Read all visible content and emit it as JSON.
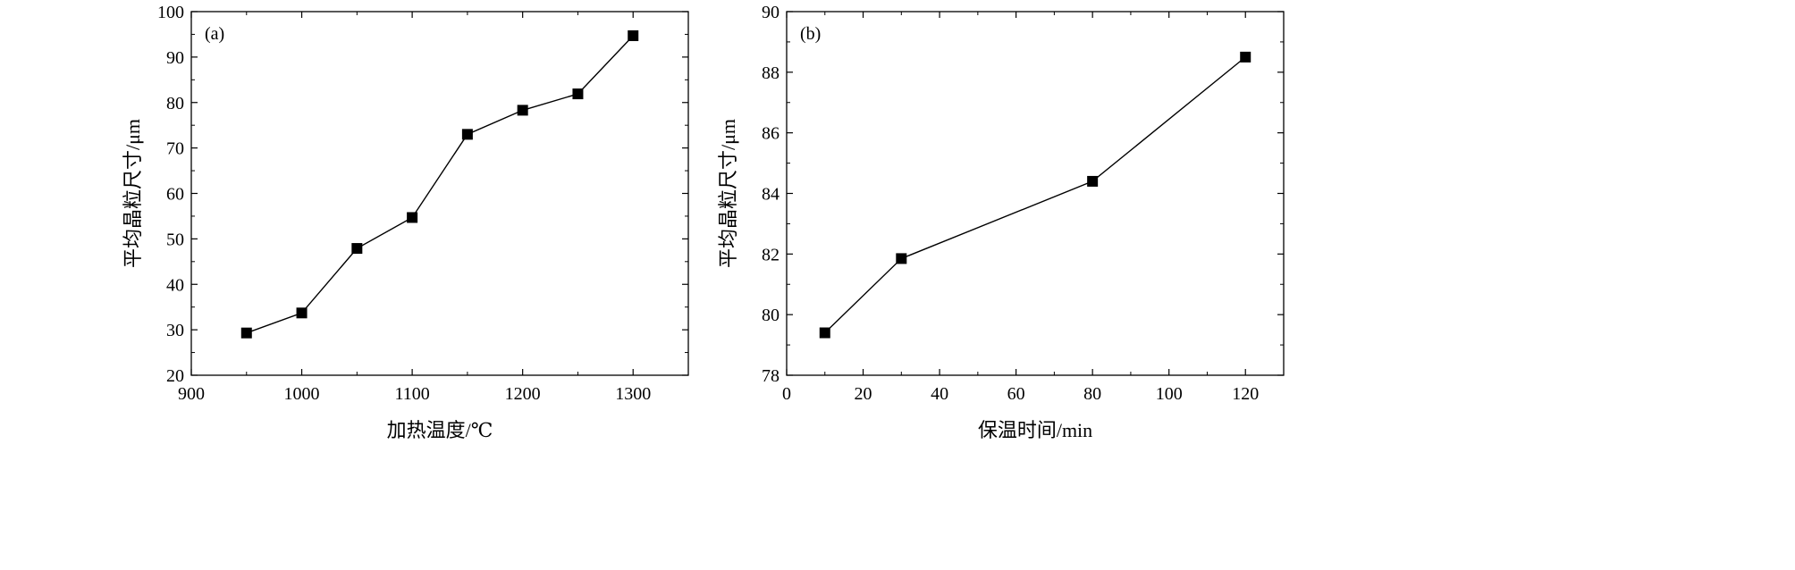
{
  "chart_data": [
    {
      "type": "line",
      "panel_label": "(a)",
      "xlabel": "加热温度/℃",
      "ylabel": "平均晶粒尺寸/μm",
      "xlim": [
        900,
        1350
      ],
      "ylim": [
        20,
        100
      ],
      "xticks": [
        900,
        1000,
        1100,
        1200,
        1300
      ],
      "yticks": [
        20,
        30,
        40,
        50,
        60,
        70,
        80,
        90,
        100
      ],
      "x": [
        950,
        1000,
        1050,
        1100,
        1150,
        1200,
        1250,
        1300
      ],
      "y": [
        29.3,
        33.7,
        47.9,
        54.7,
        73.0,
        78.3,
        81.9,
        94.7
      ],
      "marker": "square",
      "color": "#000000",
      "grid": false
    },
    {
      "type": "line",
      "panel_label": "(b)",
      "xlabel": "保温时间/min",
      "ylabel": "平均晶粒尺寸/μm",
      "xlim": [
        0,
        130
      ],
      "ylim": [
        78,
        90
      ],
      "xticks": [
        0,
        20,
        40,
        60,
        80,
        100,
        120
      ],
      "yticks": [
        78,
        80,
        82,
        84,
        86,
        88,
        90
      ],
      "x": [
        10,
        30,
        80,
        120
      ],
      "y": [
        79.4,
        81.85,
        84.4,
        88.5
      ],
      "marker": "square",
      "color": "#000000",
      "grid": false
    }
  ]
}
